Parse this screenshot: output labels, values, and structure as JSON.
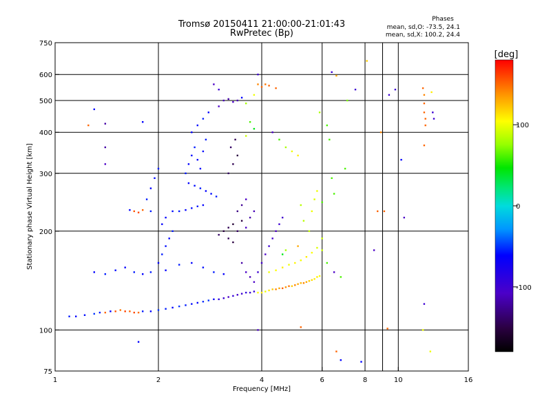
{
  "chart_data": {
    "type": "scatter",
    "title": "Tromsø 20150411 21:00:00-21:01:43",
    "subtitle": "RwPretec (Bp)",
    "xlabel": "Frequency [MHz]",
    "ylabel": "Stationary phase Virtual Height [km]",
    "x_scale": "log",
    "y_scale": "log",
    "xlim": [
      1,
      16
    ],
    "ylim": [
      75,
      750
    ],
    "x_ticks": [
      1,
      2,
      4,
      6,
      8,
      10,
      16
    ],
    "y_ticks": [
      75,
      100,
      200,
      300,
      400,
      500,
      600,
      750
    ],
    "grid": true,
    "phases_title": "Phases",
    "phases_line_o": "mean, sd,O: -73.5, 24.1",
    "phases_line_x": "mean, sd,X: 100.2, 24.4",
    "colorbar": {
      "label": "[deg]",
      "range": [
        -180,
        180
      ],
      "ticks": [
        100,
        0,
        -100
      ],
      "colormap": "rainbow"
    },
    "series": [
      {
        "points": [
          [
            1.1,
            110,
            -55
          ],
          [
            1.15,
            110,
            -60
          ],
          [
            1.22,
            111,
            -58
          ],
          [
            1.3,
            112,
            -50
          ],
          [
            1.35,
            113,
            -55
          ],
          [
            1.4,
            113,
            150
          ],
          [
            1.45,
            114,
            -60
          ],
          [
            1.5,
            114,
            155
          ],
          [
            1.55,
            115,
            145
          ],
          [
            1.6,
            114,
            160
          ],
          [
            1.65,
            114,
            150
          ],
          [
            1.7,
            113,
            158
          ],
          [
            1.75,
            113,
            148
          ],
          [
            1.8,
            114,
            -55
          ],
          [
            1.9,
            114,
            -60
          ],
          [
            2.0,
            115,
            -50
          ],
          [
            2.1,
            116,
            -55
          ],
          [
            2.2,
            117,
            -60
          ],
          [
            2.3,
            118,
            -50
          ],
          [
            2.4,
            119,
            -55
          ],
          [
            2.5,
            120,
            -58
          ],
          [
            2.6,
            121,
            -60
          ],
          [
            2.7,
            122,
            -52
          ],
          [
            2.8,
            123,
            -50
          ],
          [
            2.9,
            124,
            -65
          ],
          [
            3.0,
            124,
            -90
          ],
          [
            3.1,
            125,
            -100
          ],
          [
            3.2,
            126,
            -110
          ],
          [
            3.3,
            127,
            -95
          ],
          [
            3.4,
            128,
            -105
          ],
          [
            3.5,
            129,
            -100
          ],
          [
            3.6,
            130,
            -90
          ],
          [
            3.7,
            130,
            -100
          ],
          [
            3.8,
            131,
            -95
          ],
          [
            3.9,
            130,
            105
          ],
          [
            4.0,
            130,
            110
          ],
          [
            4.1,
            131,
            100
          ],
          [
            4.2,
            132,
            112
          ],
          [
            4.3,
            133,
            120
          ],
          [
            4.4,
            133,
            140
          ],
          [
            4.5,
            134,
            130
          ],
          [
            4.6,
            134,
            150
          ],
          [
            4.7,
            135,
            135
          ],
          [
            4.8,
            136,
            145
          ],
          [
            4.9,
            136,
            120
          ],
          [
            5.0,
            137,
            140
          ],
          [
            5.1,
            138,
            130
          ],
          [
            5.2,
            139,
            125
          ],
          [
            5.3,
            139,
            140
          ],
          [
            5.4,
            140,
            130
          ],
          [
            5.5,
            141,
            120
          ],
          [
            5.6,
            142,
            115
          ],
          [
            5.7,
            143,
            110
          ],
          [
            5.8,
            145,
            110
          ],
          [
            5.9,
            146,
            105
          ],
          [
            4.2,
            150,
            100
          ],
          [
            4.4,
            152,
            105
          ],
          [
            4.6,
            155,
            110
          ],
          [
            4.8,
            158,
            100
          ],
          [
            5.0,
            160,
            108
          ],
          [
            5.2,
            163,
            102
          ],
          [
            5.4,
            167,
            110
          ],
          [
            5.6,
            172,
            104
          ],
          [
            5.8,
            178,
            95
          ],
          [
            6.0,
            190,
            90
          ],
          [
            5.5,
            200,
            88
          ],
          [
            5.3,
            215,
            85
          ],
          [
            5.6,
            230,
            100
          ],
          [
            5.7,
            250,
            95
          ],
          [
            5.8,
            265,
            100
          ],
          [
            5.2,
            240,
            85
          ],
          [
            4.6,
            170,
            40
          ],
          [
            4.7,
            175,
            80
          ],
          [
            5.1,
            180,
            130
          ],
          [
            1.3,
            150,
            -60
          ],
          [
            1.4,
            148,
            -55
          ],
          [
            1.5,
            152,
            -58
          ],
          [
            1.6,
            155,
            -62
          ],
          [
            1.7,
            150,
            -55
          ],
          [
            1.8,
            148,
            -60
          ],
          [
            1.9,
            150,
            -55
          ],
          [
            2.1,
            152,
            -60
          ],
          [
            2.3,
            158,
            -55
          ],
          [
            2.5,
            160,
            -60
          ],
          [
            2.7,
            155,
            -58
          ],
          [
            2.9,
            150,
            -55
          ],
          [
            3.1,
            148,
            -62
          ],
          [
            2.0,
            160,
            -60
          ],
          [
            2.05,
            170,
            -55
          ],
          [
            2.1,
            180,
            -58
          ],
          [
            2.15,
            190,
            -60
          ],
          [
            2.2,
            200,
            -55
          ],
          [
            2.05,
            210,
            -62
          ],
          [
            2.1,
            220,
            -60
          ],
          [
            2.2,
            230,
            -58
          ],
          [
            1.9,
            230,
            -55
          ],
          [
            1.8,
            232,
            150
          ],
          [
            1.75,
            228,
            160
          ],
          [
            1.7,
            230,
            155
          ],
          [
            1.65,
            232,
            -60
          ],
          [
            2.3,
            230,
            -55
          ],
          [
            2.4,
            232,
            -60
          ],
          [
            2.5,
            235,
            -58
          ],
          [
            2.6,
            238,
            -55
          ],
          [
            2.7,
            240,
            -60
          ],
          [
            1.85,
            250,
            -55
          ],
          [
            1.9,
            270,
            -60
          ],
          [
            1.95,
            290,
            -58
          ],
          [
            2.0,
            310,
            -55
          ],
          [
            2.4,
            300,
            -55
          ],
          [
            2.45,
            320,
            -60
          ],
          [
            2.5,
            340,
            -58
          ],
          [
            2.55,
            360,
            -55
          ],
          [
            2.6,
            330,
            -62
          ],
          [
            2.65,
            310,
            -60
          ],
          [
            2.7,
            350,
            -58
          ],
          [
            2.75,
            380,
            -55
          ],
          [
            2.5,
            400,
            -60
          ],
          [
            2.6,
            420,
            -58
          ],
          [
            2.7,
            440,
            -55
          ],
          [
            2.8,
            460,
            -60
          ],
          [
            2.45,
            280,
            -60
          ],
          [
            2.55,
            275,
            -58
          ],
          [
            2.65,
            270,
            -55
          ],
          [
            2.75,
            265,
            -60
          ],
          [
            2.85,
            260,
            -58
          ],
          [
            2.95,
            255,
            -55
          ],
          [
            3.0,
            195,
            -140
          ],
          [
            3.1,
            200,
            -150
          ],
          [
            3.2,
            205,
            -145
          ],
          [
            3.3,
            210,
            -155
          ],
          [
            3.4,
            200,
            -140
          ],
          [
            3.5,
            215,
            -150
          ],
          [
            3.2,
            190,
            -145
          ],
          [
            3.3,
            185,
            -150
          ],
          [
            3.6,
            205,
            -110
          ],
          [
            3.7,
            220,
            -120
          ],
          [
            3.8,
            230,
            -115
          ],
          [
            3.4,
            230,
            -130
          ],
          [
            3.5,
            240,
            -125
          ],
          [
            3.6,
            250,
            -110
          ],
          [
            3.2,
            300,
            -140
          ],
          [
            3.3,
            320,
            -145
          ],
          [
            3.4,
            340,
            -150
          ],
          [
            3.25,
            360,
            -140
          ],
          [
            3.35,
            380,
            -145
          ],
          [
            3.5,
            160,
            -120
          ],
          [
            3.6,
            150,
            -110
          ],
          [
            3.7,
            145,
            -115
          ],
          [
            3.8,
            140,
            -110
          ],
          [
            3.9,
            150,
            -100
          ],
          [
            4.0,
            160,
            -105
          ],
          [
            4.1,
            170,
            -110
          ],
          [
            4.2,
            180,
            -100
          ],
          [
            4.3,
            190,
            -105
          ],
          [
            4.4,
            200,
            -110
          ],
          [
            4.5,
            210,
            -100
          ],
          [
            4.6,
            220,
            -105
          ],
          [
            3.0,
            480,
            -110
          ],
          [
            3.1,
            500,
            -115
          ],
          [
            3.2,
            505,
            -120
          ],
          [
            3.3,
            495,
            -110
          ],
          [
            3.4,
            500,
            -115
          ],
          [
            3.5,
            510,
            -60
          ],
          [
            3.6,
            490,
            80
          ],
          [
            3.8,
            520,
            100
          ],
          [
            3.9,
            560,
            140
          ],
          [
            4.0,
            550,
            150
          ],
          [
            4.1,
            560,
            145
          ],
          [
            4.2,
            555,
            150
          ],
          [
            4.4,
            545,
            150
          ],
          [
            3.9,
            600,
            -100
          ],
          [
            2.9,
            560,
            -110
          ],
          [
            3.0,
            540,
            -100
          ],
          [
            3.7,
            430,
            60
          ],
          [
            3.8,
            410,
            40
          ],
          [
            3.6,
            390,
            90
          ],
          [
            4.3,
            400,
            -110
          ],
          [
            4.5,
            380,
            60
          ],
          [
            4.7,
            360,
            80
          ],
          [
            4.9,
            350,
            100
          ],
          [
            5.1,
            340,
            110
          ],
          [
            1.3,
            470,
            -60
          ],
          [
            1.25,
            420,
            150
          ],
          [
            1.4,
            425,
            -120
          ],
          [
            1.4,
            360,
            -120
          ],
          [
            1.4,
            320,
            -110
          ],
          [
            1.8,
            430,
            -60
          ],
          [
            1.75,
            92,
            -60
          ],
          [
            6.4,
            610,
            -100
          ],
          [
            6.6,
            595,
            130
          ],
          [
            7.5,
            540,
            -100
          ],
          [
            8.1,
            660,
            120
          ],
          [
            9.4,
            520,
            -100
          ],
          [
            9.8,
            540,
            -100
          ],
          [
            11.8,
            545,
            150
          ],
          [
            11.9,
            520,
            140
          ],
          [
            11.9,
            490,
            150
          ],
          [
            11.9,
            460,
            150
          ],
          [
            12.0,
            440,
            150
          ],
          [
            12.0,
            420,
            150
          ],
          [
            12.5,
            530,
            110
          ],
          [
            12.6,
            460,
            -100
          ],
          [
            12.7,
            440,
            -100
          ],
          [
            8.9,
            400,
            140
          ],
          [
            6.3,
            380,
            60
          ],
          [
            10.2,
            330,
            -60
          ],
          [
            9.1,
            230,
            150
          ],
          [
            8.7,
            230,
            150
          ],
          [
            10.4,
            220,
            -110
          ],
          [
            8.5,
            175,
            -110
          ],
          [
            11.9,
            365,
            150
          ],
          [
            11.9,
            120,
            -100
          ],
          [
            11.8,
            100,
            100
          ],
          [
            9.3,
            101,
            150
          ],
          [
            5.2,
            102,
            150
          ],
          [
            3.9,
            100,
            -110
          ],
          [
            6.6,
            86,
            150
          ],
          [
            6.8,
            81,
            -60
          ],
          [
            7.8,
            80,
            -60
          ],
          [
            12.4,
            86,
            100
          ],
          [
            6.0,
            175,
            90
          ],
          [
            6.2,
            160,
            60
          ],
          [
            6.5,
            150,
            -110
          ],
          [
            6.8,
            145,
            60
          ],
          [
            6.0,
            245,
            60
          ],
          [
            6.5,
            260,
            60
          ],
          [
            6.4,
            290,
            60
          ],
          [
            7.0,
            310,
            60
          ],
          [
            7.1,
            500,
            70
          ],
          [
            6.2,
            420,
            60
          ],
          [
            5.9,
            460,
            80
          ]
        ]
      }
    ]
  }
}
